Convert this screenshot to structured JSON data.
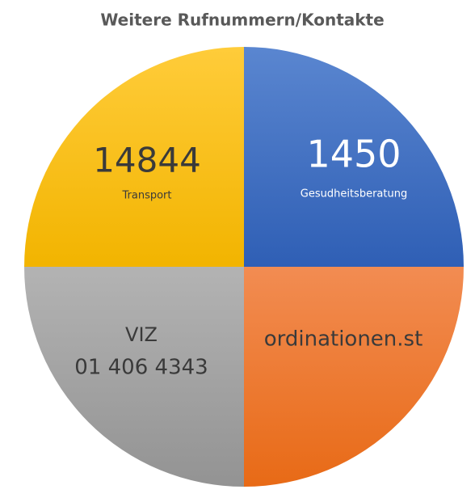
{
  "title": "Weitere Rufnummern/Kontakte",
  "segments": [
    {
      "lines": [
        "14844",
        "Transport"
      ]
    },
    {
      "lines": [
        "1450",
        "Gesudheitsberatung"
      ]
    },
    {
      "lines": [
        "VIZ",
        "01 406 4343"
      ]
    },
    {
      "lines": [
        "ordinationen.st"
      ]
    }
  ]
}
